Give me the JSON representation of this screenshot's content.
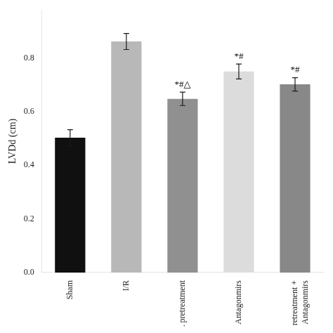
{
  "chart_data": {
    "type": "bar",
    "ylabel": "LVDd (cm)",
    "categories": [
      "Sham",
      "I/R",
      ". pretreatment",
      "Antagonmirs",
      "retreatment +\nAntagonmirs"
    ],
    "values": [
      0.503,
      0.862,
      0.648,
      0.75,
      0.702
    ],
    "errors": [
      0.03,
      0.03,
      0.025,
      0.028,
      0.025
    ],
    "colors": [
      "#101010",
      "#b8b8b8",
      "#909090",
      "#dcdcdc",
      "#888888"
    ],
    "annotations": [
      {
        "category": ". pretreatment",
        "text": "*#△"
      },
      {
        "category": "Antagonmirs",
        "text": "*#"
      },
      {
        "category": "retreatment +\nAntagonmirs",
        "text": "*#"
      }
    ],
    "ylim": [
      0.0,
      0.98
    ],
    "yticks": [
      {
        "value": 0.0,
        "label": "0.0"
      },
      0.2,
      0.4,
      0.6,
      0.8
    ],
    "grid": false,
    "legend": false
  }
}
